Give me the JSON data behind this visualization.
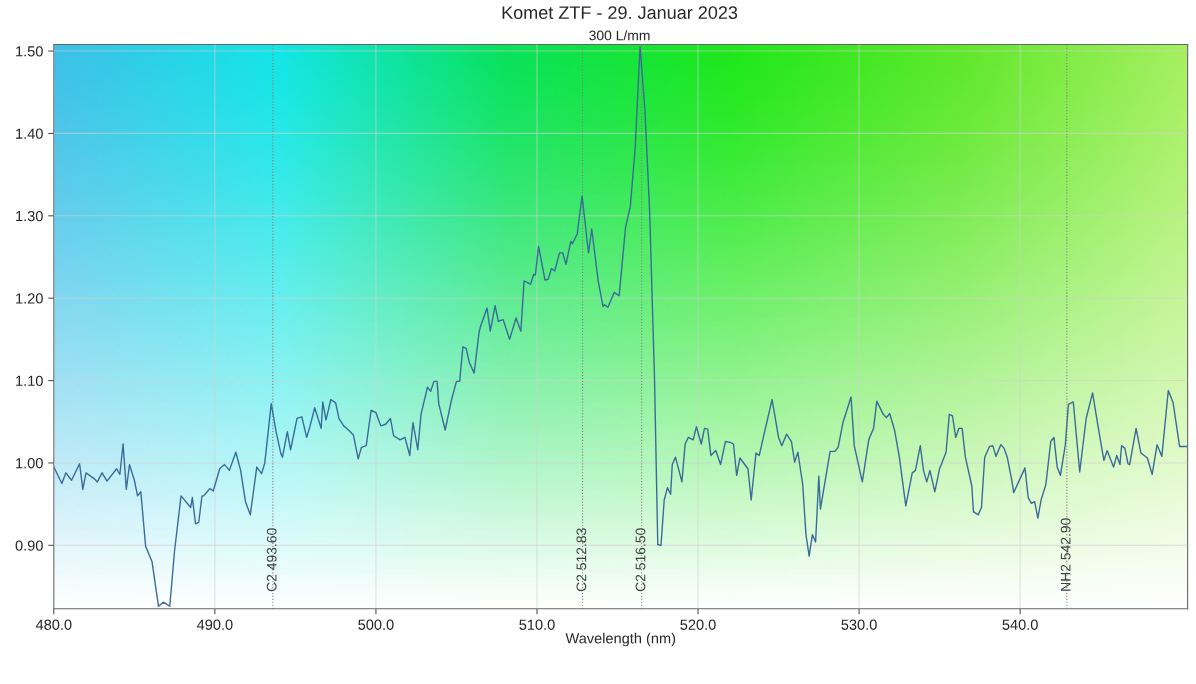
{
  "chart_data": {
    "type": "line",
    "title": "Komet ZTF - 29. Januar 2023",
    "subtitle": "300 L/mm",
    "xlabel": "Wavelength (nm)",
    "xlim": [
      480,
      550.4
    ],
    "ylim": [
      0.823,
      1.508
    ],
    "xticks": [
      {
        "value": 480,
        "label": "480.0"
      },
      {
        "value": 490,
        "label": "490.0"
      },
      {
        "value": 500,
        "label": "500.0"
      },
      {
        "value": 510,
        "label": "510.0"
      },
      {
        "value": 520,
        "label": "520.0"
      },
      {
        "value": 530,
        "label": "530.0"
      },
      {
        "value": 540,
        "label": "540.0"
      }
    ],
    "yticks": [
      {
        "value": 0.9,
        "label": "0.90"
      },
      {
        "value": 1.0,
        "label": "1.00"
      },
      {
        "value": 1.1,
        "label": "1.10"
      },
      {
        "value": 1.2,
        "label": "1.20"
      },
      {
        "value": 1.3,
        "label": "1.30"
      },
      {
        "value": 1.4,
        "label": "1.40"
      },
      {
        "value": 1.5,
        "label": "1.50"
      }
    ],
    "grid": true,
    "marker": "none",
    "line_style": "solid",
    "ref_lines": [
      {
        "axis": "x",
        "value": 493.6,
        "label": "C2 493.60",
        "line_style": "dotted",
        "color": "#808080"
      },
      {
        "axis": "x",
        "value": 512.83,
        "label": "C2 512.83",
        "line_style": "dotted",
        "color": "#808080"
      },
      {
        "axis": "x",
        "value": 516.5,
        "label": "C2 516.50",
        "line_style": "dotted",
        "color": "#808080"
      },
      {
        "axis": "x",
        "value": 542.9,
        "label": "NH2 542.90",
        "line_style": "dotted",
        "color": "#808080"
      }
    ],
    "series": [
      {
        "color": "#3a6a9a",
        "x": [
          480.0,
          480.5,
          480.75,
          481.1,
          481.6,
          481.8,
          482.0,
          482.5,
          482.7,
          483.0,
          483.3,
          483.9,
          484.1,
          484.3,
          484.5,
          484.7,
          485.0,
          485.2,
          485.4,
          485.7,
          486.1,
          486.5,
          486.8,
          487.2,
          487.5,
          487.9,
          488.5,
          488.6,
          488.8,
          489.0,
          489.2,
          489.3,
          489.7,
          489.9,
          490.3,
          490.6,
          490.9,
          491.3,
          491.6,
          491.9,
          492.2,
          492.6,
          492.9,
          493.1,
          493.5,
          493.8,
          494.1,
          494.2,
          494.5,
          494.7,
          495.1,
          495.4,
          495.7,
          495.9,
          496.2,
          496.6,
          496.7,
          496.9,
          497.2,
          497.5,
          497.7,
          498.0,
          498.3,
          498.6,
          498.9,
          499.1,
          499.4,
          499.7,
          500.0,
          500.3,
          500.6,
          500.9,
          501.1,
          501.5,
          501.8,
          502.1,
          502.3,
          502.6,
          502.8,
          503.2,
          503.4,
          503.6,
          503.8,
          503.9,
          504.3,
          504.7,
          505.0,
          505.2,
          505.4,
          505.6,
          505.8,
          506.1,
          506.4,
          506.5,
          506.9,
          507.1,
          507.4,
          507.6,
          507.9,
          508.3,
          508.7,
          509.0,
          509.2,
          509.6,
          509.8,
          509.9,
          510.1,
          510.5,
          510.7,
          510.9,
          511.1,
          511.4,
          511.6,
          511.8,
          512.1,
          512.2,
          512.5,
          512.8,
          513.2,
          513.4,
          513.8,
          514.1,
          514.2,
          514.4,
          514.8,
          515.1,
          515.5,
          515.8,
          516.1,
          516.4,
          516.7,
          517.0,
          517.3,
          517.5,
          517.7,
          517.9,
          518.1,
          518.3,
          518.4,
          518.6,
          519.0,
          519.2,
          519.4,
          519.7,
          519.9,
          520.2,
          520.4,
          520.6,
          520.8,
          521.1,
          521.4,
          521.7,
          522.0,
          522.2,
          522.4,
          522.6,
          523.1,
          523.3,
          523.6,
          523.8,
          524.1,
          524.6,
          525.0,
          525.2,
          525.5,
          525.8,
          526.0,
          526.2,
          526.5,
          526.7,
          526.9,
          527.1,
          527.3,
          527.5,
          527.6,
          528.2,
          528.5,
          528.7,
          529.0,
          529.5,
          529.7,
          530.2,
          530.6,
          530.7,
          530.9,
          531.1,
          531.5,
          531.7,
          531.9,
          532.2,
          532.5,
          532.9,
          533.3,
          533.5,
          533.8,
          534.0,
          534.2,
          534.4,
          534.7,
          535.0,
          535.4,
          535.6,
          535.8,
          536.0,
          536.2,
          536.4,
          536.6,
          537.0,
          537.1,
          537.4,
          537.6,
          537.8,
          538.1,
          538.3,
          538.5,
          538.8,
          539.0,
          539.2,
          539.5,
          539.6,
          540.3,
          540.5,
          540.7,
          540.9,
          541.1,
          541.3,
          541.6,
          541.9,
          542.1,
          542.3,
          542.5,
          542.8,
          543.0,
          543.3,
          543.7,
          544.1,
          544.5,
          544.8,
          545.2,
          545.4,
          545.8,
          546.0,
          546.2,
          546.3,
          546.5,
          546.7,
          546.8,
          547.2,
          547.5,
          547.9,
          548.2,
          548.5,
          548.8,
          549.2,
          549.5,
          549.9,
          550.4
        ],
        "values": [
          0.995,
          0.975,
          0.988,
          0.979,
          0.999,
          0.968,
          0.988,
          0.981,
          0.977,
          0.988,
          0.978,
          0.993,
          0.986,
          1.023,
          0.968,
          0.998,
          0.979,
          0.96,
          0.965,
          0.899,
          0.88,
          0.826,
          0.831,
          0.826,
          0.894,
          0.96,
          0.946,
          0.958,
          0.926,
          0.928,
          0.96,
          0.96,
          0.969,
          0.966,
          0.993,
          0.998,
          0.991,
          1.013,
          0.991,
          0.953,
          0.937,
          0.995,
          0.987,
          1.0,
          1.072,
          1.038,
          1.011,
          1.007,
          1.038,
          1.016,
          1.054,
          1.056,
          1.031,
          1.044,
          1.067,
          1.042,
          1.074,
          1.052,
          1.077,
          1.073,
          1.054,
          1.045,
          1.04,
          1.034,
          1.005,
          1.019,
          1.021,
          1.064,
          1.061,
          1.045,
          1.047,
          1.054,
          1.033,
          1.028,
          1.031,
          1.009,
          1.049,
          1.016,
          1.059,
          1.092,
          1.087,
          1.099,
          1.099,
          1.072,
          1.04,
          1.077,
          1.099,
          1.099,
          1.141,
          1.139,
          1.122,
          1.109,
          1.158,
          1.166,
          1.188,
          1.16,
          1.191,
          1.172,
          1.174,
          1.15,
          1.176,
          1.16,
          1.221,
          1.217,
          1.229,
          1.228,
          1.263,
          1.222,
          1.223,
          1.236,
          1.233,
          1.255,
          1.255,
          1.241,
          1.269,
          1.266,
          1.278,
          1.324,
          1.255,
          1.284,
          1.221,
          1.19,
          1.192,
          1.189,
          1.207,
          1.203,
          1.286,
          1.312,
          1.383,
          1.505,
          1.43,
          1.303,
          1.101,
          0.901,
          0.9,
          0.955,
          0.97,
          0.962,
          0.998,
          1.007,
          0.977,
          1.023,
          1.031,
          1.028,
          1.044,
          1.023,
          1.042,
          1.041,
          1.009,
          1.015,
          0.998,
          1.026,
          1.025,
          1.023,
          0.985,
          1.006,
          0.993,
          0.955,
          1.012,
          1.009,
          1.035,
          1.077,
          1.031,
          1.021,
          1.035,
          1.026,
          1.001,
          1.013,
          0.974,
          0.913,
          0.887,
          0.913,
          0.904,
          0.984,
          0.944,
          1.014,
          1.014,
          1.019,
          1.049,
          1.08,
          1.021,
          0.977,
          1.028,
          1.033,
          1.042,
          1.075,
          1.059,
          1.055,
          1.06,
          1.04,
          1.007,
          0.948,
          0.988,
          0.991,
          1.021,
          0.991,
          0.977,
          0.991,
          0.965,
          0.993,
          1.013,
          1.059,
          1.057,
          1.031,
          1.042,
          1.042,
          1.007,
          0.972,
          0.941,
          0.937,
          0.946,
          1.007,
          1.02,
          1.021,
          1.008,
          1.022,
          1.018,
          1.007,
          0.977,
          0.964,
          0.994,
          0.958,
          0.951,
          0.953,
          0.933,
          0.955,
          0.974,
          1.026,
          1.031,
          0.995,
          0.985,
          1.021,
          1.071,
          1.074,
          0.989,
          1.054,
          1.085,
          1.049,
          1.003,
          1.015,
          0.995,
          1.009,
          0.998,
          1.021,
          1.018,
          0.999,
          0.998,
          1.042,
          1.012,
          1.006,
          0.986,
          1.022,
          1.008,
          1.088,
          1.073,
          1.02,
          1.02
        ]
      }
    ]
  }
}
